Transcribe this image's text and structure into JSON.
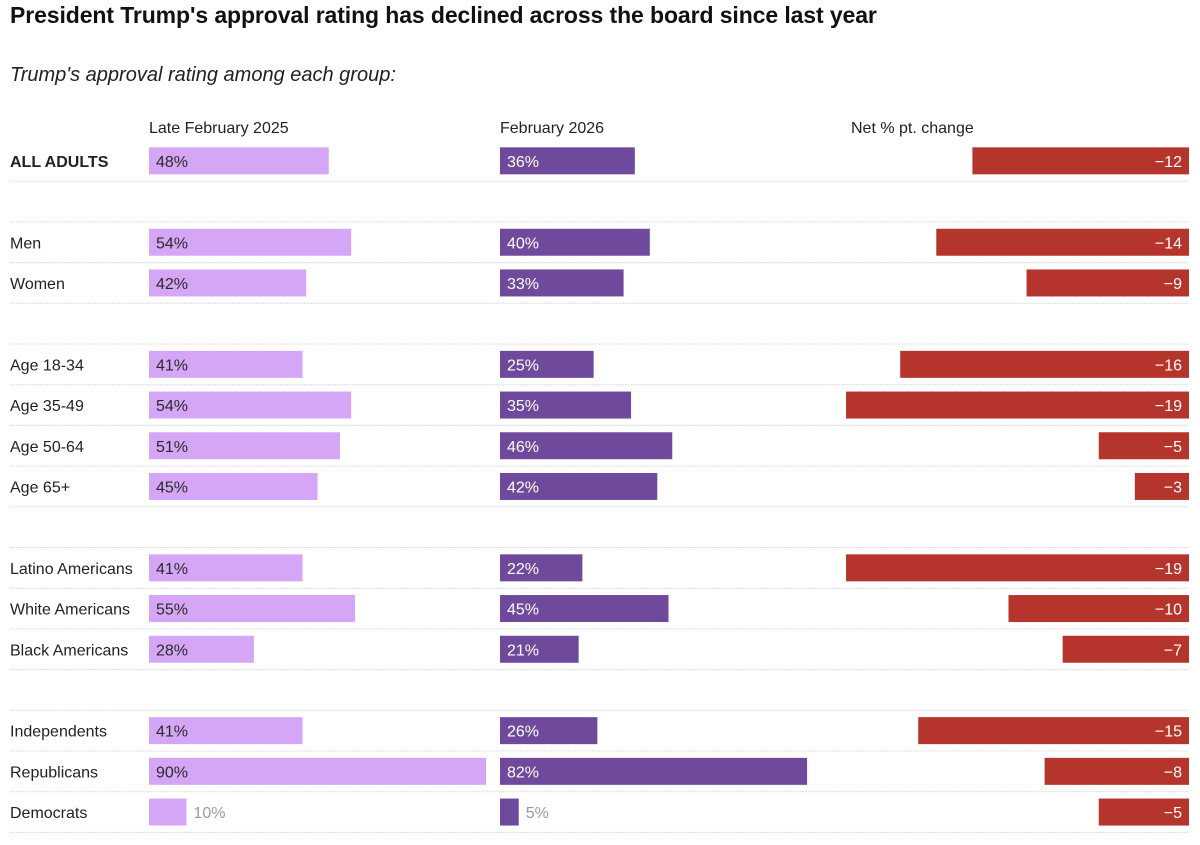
{
  "title": "President Trump's approval rating has declined across the board since last year",
  "subtitle": "Trump's approval rating among each group:",
  "columns": {
    "before": "Late February 2025",
    "after": "February 2026",
    "change": "Net % pt. change"
  },
  "colors": {
    "before": "#d5a6f5",
    "after": "#6f4a9c",
    "change": "#b5342b",
    "divider": "#dcdcdc"
  },
  "chart_data": {
    "type": "bar",
    "groups": [
      {
        "rows": [
          {
            "label": "ALL ADULTS",
            "bold": true,
            "before": 48,
            "after": 36,
            "change": -12
          }
        ]
      },
      {
        "rows": [
          {
            "label": "Men",
            "before": 54,
            "after": 40,
            "change": -14
          },
          {
            "label": "Women",
            "before": 42,
            "after": 33,
            "change": -9
          }
        ]
      },
      {
        "rows": [
          {
            "label": "Age 18-34",
            "before": 41,
            "after": 25,
            "change": -16
          },
          {
            "label": "Age 35-49",
            "before": 54,
            "after": 35,
            "change": -19
          },
          {
            "label": "Age 50-64",
            "before": 51,
            "after": 46,
            "change": -5
          },
          {
            "label": "Age 65+",
            "before": 45,
            "after": 42,
            "change": -3
          }
        ]
      },
      {
        "rows": [
          {
            "label": "Latino Americans",
            "before": 41,
            "after": 22,
            "change": -19
          },
          {
            "label": "White Americans",
            "before": 55,
            "after": 45,
            "change": -10
          },
          {
            "label": "Black Americans",
            "before": 28,
            "after": 21,
            "change": -7
          }
        ]
      },
      {
        "rows": [
          {
            "label": "Independents",
            "before": 41,
            "after": 26,
            "change": -15
          },
          {
            "label": "Republicans",
            "before": 90,
            "after": 82,
            "change": -8
          },
          {
            "label": "Democrats",
            "before": 10,
            "after": 5,
            "change": -5
          }
        ]
      }
    ],
    "value_suffix": "%"
  }
}
